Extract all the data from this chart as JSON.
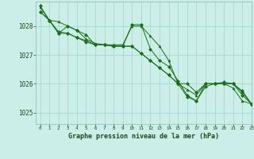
{
  "title": "Graphe pression niveau de la mer (hPa)",
  "bg_color": "#cceee8",
  "grid_color": "#aaddcc",
  "line_color": "#1a6e1a",
  "marker_color": "#1a6e1a",
  "xlim": [
    -0.5,
    23
  ],
  "ylim": [
    1024.6,
    1028.85
  ],
  "yticks": [
    1025,
    1026,
    1027,
    1028
  ],
  "xticks": [
    0,
    1,
    2,
    3,
    4,
    5,
    6,
    7,
    8,
    9,
    10,
    11,
    12,
    13,
    14,
    15,
    16,
    17,
    18,
    19,
    20,
    21,
    22,
    23
  ],
  "series": [
    [
      1028.65,
      1028.2,
      1028.15,
      1028.0,
      1027.85,
      1027.55,
      1027.4,
      1027.35,
      1027.35,
      1027.35,
      1028.0,
      1028.0,
      1027.65,
      1027.3,
      1026.8,
      1026.0,
      1025.8,
      1025.6,
      1026.0,
      1026.0,
      1026.0,
      1025.85,
      1025.4,
      1025.3
    ],
    [
      1028.5,
      1028.2,
      1027.8,
      1027.75,
      1027.6,
      1027.5,
      1027.35,
      1027.35,
      1027.3,
      1027.3,
      1027.3,
      1027.05,
      1026.8,
      1026.55,
      1026.3,
      1026.0,
      1026.0,
      1025.7,
      1026.0,
      1026.0,
      1026.0,
      1026.0,
      1025.7,
      1025.3
    ],
    [
      1028.5,
      1028.2,
      1027.75,
      1027.75,
      1027.6,
      1027.45,
      1027.35,
      1027.35,
      1027.3,
      1027.3,
      1027.3,
      1027.05,
      1026.8,
      1026.55,
      1026.3,
      1026.0,
      1025.55,
      1025.4,
      1025.9,
      1026.0,
      1026.0,
      1026.0,
      1025.6,
      1025.3
    ],
    [
      1028.7,
      1028.2,
      1027.75,
      1028.0,
      1027.85,
      1027.7,
      1027.35,
      1027.35,
      1027.3,
      1027.3,
      1028.05,
      1028.05,
      1027.2,
      1026.8,
      1026.6,
      1026.1,
      1025.6,
      1025.4,
      1026.0,
      1026.0,
      1026.05,
      1026.0,
      1025.75,
      1025.3
    ]
  ]
}
